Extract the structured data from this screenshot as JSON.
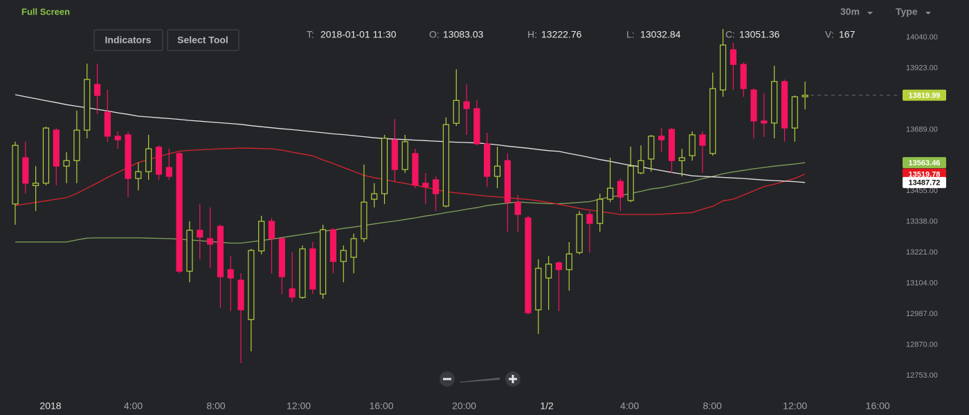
{
  "ui": {
    "full_screen": "Full Screen",
    "interval": "30m",
    "type_menu": "Type",
    "buttons": [
      "Indicators",
      "Select Tool"
    ],
    "ohlcv": [
      {
        "label": "T:",
        "value": "2018-01-01 11:30"
      },
      {
        "label": "O:",
        "value": "13083.03"
      },
      {
        "label": "H:",
        "value": "13222.76"
      },
      {
        "label": "L:",
        "value": "13032.84"
      },
      {
        "label": "C:",
        "value": "13051.36"
      },
      {
        "label": "V:",
        "value": "167"
      }
    ]
  },
  "chart_data": {
    "type": "candlestick",
    "categories": [
      null,
      null,
      null,
      "2018",
      null,
      null,
      null,
      null,
      null,
      null,
      null,
      "4:00",
      null,
      null,
      null,
      null,
      null,
      null,
      null,
      "8:00",
      null,
      null,
      null,
      null,
      null,
      null,
      null,
      "12:00",
      null,
      null,
      null,
      null,
      null,
      null,
      null,
      "16:00",
      null,
      null,
      null,
      null,
      null,
      null,
      null,
      "20:00",
      null,
      null,
      null,
      null,
      null,
      null,
      null,
      "1/2",
      null,
      null,
      null,
      null,
      null,
      null,
      null,
      "4:00",
      null,
      null,
      null,
      null,
      null,
      null,
      null,
      "8:00",
      null,
      null,
      null,
      null,
      null,
      null,
      null,
      "12:00",
      null,
      null,
      null,
      null,
      null,
      null,
      null,
      "16:00"
    ],
    "open": [
      13406,
      13582,
      13476,
      13485,
      13687,
      13550,
      13571,
      13687,
      13861,
      13756,
      13664,
      13669,
      13503,
      13529,
      13622,
      13545,
      13598,
      13150,
      13306,
      13274,
      13321,
      13156,
      13116,
      12966,
      13227,
      13340,
      13274,
      13083.03,
      13050,
      13235,
      13063,
      13308,
      13187,
      13203,
      13274,
      13424,
      13445,
      13650,
      13537,
      13598,
      13485,
      13498,
      13398,
      13713,
      13795,
      13769,
      13635,
      13511,
      13571,
      13413,
      13353,
      13003,
      13124,
      13182,
      13156,
      13221,
      13366,
      13332,
      13424,
      13492,
      13419,
      13524,
      13577,
      13664,
      13690,
      13571,
      13590,
      13669,
      13598,
      13840,
      13993,
      13937,
      13840,
      13722,
      13714,
      13872,
      13695,
      13814,
      null,
      null,
      null,
      null,
      null,
      null
    ],
    "high": [
      13643,
      13643,
      13550,
      13700,
      13695,
      13603,
      13761,
      13940,
      13940,
      13840,
      13682,
      13682,
      13563,
      13669,
      13629,
      13616,
      13603,
      13340,
      13406,
      13393,
      13327,
      13208,
      13142,
      13235,
      13361,
      13353,
      13274,
      13222.76,
      13248,
      13261,
      13327,
      13314,
      13248,
      13293,
      13556,
      13485,
      13669,
      13729,
      13669,
      13616,
      13524,
      13511,
      13735,
      13919,
      13861,
      13800,
      13677,
      13624,
      13598,
      13440,
      13361,
      13195,
      13208,
      13187,
      13261,
      13379,
      13379,
      13445,
      13582,
      13503,
      13624,
      13629,
      13669,
      13695,
      13695,
      13616,
      13682,
      13682,
      13906,
      14072,
      14019,
      13945,
      13845,
      13827,
      13932,
      13880,
      13819,
      13872,
      null,
      null,
      null,
      null,
      null,
      null
    ],
    "low": [
      13327,
      13445,
      13379,
      13477,
      13477,
      13485,
      13485,
      13656,
      13748,
      13643,
      13616,
      13432,
      13458,
      13498,
      13498,
      13498,
      13142,
      13108,
      13195,
      13161,
      13011,
      12998,
      12800,
      12845,
      13214,
      13142,
      13063,
      13032.84,
      13045,
      13063,
      13045,
      13142,
      13108,
      13142,
      13261,
      13393,
      13406,
      13492,
      13524,
      13466,
      13406,
      13379,
      13393,
      13703,
      13669,
      13629,
      13471,
      13466,
      13300,
      13300,
      12985,
      12911,
      13003,
      12998,
      13076,
      13214,
      13221,
      13300,
      13413,
      13379,
      13413,
      13519,
      13529,
      13603,
      13524,
      13511,
      13571,
      13524,
      13590,
      13814,
      13840,
      13814,
      13656,
      13661,
      13656,
      13643,
      13643,
      13766,
      null,
      null,
      null,
      null,
      null,
      null
    ],
    "close": [
      13629,
      13485,
      13485,
      13695,
      13550,
      13571,
      13687,
      13880,
      13819,
      13664,
      13650,
      13503,
      13529,
      13616,
      13519,
      13511,
      13150,
      13306,
      13280,
      13253,
      13129,
      13124,
      13003,
      13229,
      13340,
      13274,
      13129,
      13051.36,
      13235,
      13082,
      13308,
      13187,
      13229,
      13274,
      13413,
      13445,
      13656,
      13537,
      13643,
      13477,
      13471,
      13445,
      13708,
      13800,
      13769,
      13635,
      13511,
      13550,
      13413,
      13366,
      12992,
      13161,
      13177,
      13156,
      13216,
      13366,
      13332,
      13424,
      13466,
      13432,
      13550,
      13571,
      13664,
      13650,
      13571,
      13582,
      13669,
      13629,
      13845,
      14011,
      13937,
      13845,
      13722,
      13714,
      13872,
      13695,
      13814,
      13819.99,
      null,
      null,
      null,
      null,
      null,
      null
    ],
    "up_color": "#b4d23a",
    "down_color": "#f5145f",
    "lines": [
      {
        "color": "#7fa35a",
        "badge_color": "#8fbf4a",
        "values": [
          13261,
          13261,
          13261,
          13261,
          13261,
          13261,
          13269,
          13276,
          13277,
          13277,
          13277,
          13277,
          13277,
          13276,
          13275,
          13274,
          13272,
          13269,
          13266,
          13263,
          13260,
          13257,
          13257,
          13262,
          13267,
          13272,
          13278,
          13284,
          13290,
          13296,
          13302,
          13307,
          13313,
          13318,
          13324,
          13330,
          13336,
          13341,
          13347,
          13353,
          13360,
          13366,
          13373,
          13379,
          13386,
          13392,
          13400,
          13405,
          13409,
          13414,
          13411,
          13409,
          13407,
          13407,
          13409,
          13412,
          13415,
          13424,
          13433,
          13438,
          13446,
          13454,
          13463,
          13468,
          13476,
          13484,
          13492,
          13502,
          13511,
          13521,
          13528,
          13534,
          13540,
          13545,
          13550,
          13554,
          13558,
          13563.46,
          null,
          null,
          null,
          null,
          null,
          null
        ]
      },
      {
        "color": "#d8242c",
        "badge_color": "#e8161e",
        "values": [
          13400,
          13406,
          13412,
          13418,
          13424,
          13430,
          13446,
          13466,
          13486,
          13507,
          13526,
          13545,
          13564,
          13575,
          13586,
          13597,
          13607,
          13610,
          13612,
          13614,
          13616,
          13617,
          13619,
          13618,
          13617,
          13616,
          13611,
          13603,
          13596,
          13589,
          13574,
          13560,
          13545,
          13530,
          13515,
          13506,
          13499,
          13491,
          13484,
          13477,
          13469,
          13461,
          13453,
          13448,
          13444,
          13440,
          13436,
          13433,
          13430,
          13426,
          13423,
          13418,
          13412,
          13405,
          13397,
          13389,
          13383,
          13377,
          13372,
          13366,
          13366,
          13366,
          13366,
          13367,
          13369,
          13371,
          13373,
          13386,
          13397,
          13418,
          13424,
          13440,
          13456,
          13472,
          13481,
          13492,
          13503,
          13519.78,
          null,
          null,
          null,
          null,
          null,
          null
        ]
      },
      {
        "color": "#e6e6e6",
        "badge_color": "#ffffff",
        "values": [
          13822,
          13814,
          13807,
          13799,
          13792,
          13784,
          13778,
          13772,
          13766,
          13760,
          13753,
          13747,
          13740,
          13737,
          13734,
          13731,
          13728,
          13724,
          13721,
          13718,
          13715,
          13712,
          13709,
          13704,
          13700,
          13696,
          13692,
          13689,
          13685,
          13681,
          13677,
          13673,
          13670,
          13666,
          13662,
          13658,
          13655,
          13653,
          13651,
          13649,
          13647,
          13645,
          13643,
          13641,
          13640,
          13638,
          13635,
          13631,
          13626,
          13622,
          13618,
          13613,
          13609,
          13606,
          13598,
          13591,
          13583,
          13575,
          13568,
          13560,
          13553,
          13547,
          13540,
          13533,
          13526,
          13520,
          13513,
          13511,
          13509,
          13507,
          13505,
          13503,
          13500,
          13497,
          13495,
          13493,
          13491,
          13487.72,
          null,
          null,
          null,
          null,
          null,
          null
        ]
      }
    ],
    "ylim": [
      12708,
      14077
    ],
    "yticks": [
      {
        "value": 14040,
        "label": "14040.00"
      },
      {
        "value": 13923,
        "label": "13923.00"
      },
      {
        "value": 13689,
        "label": "13689.00"
      },
      {
        "value": 13455,
        "label": "13455.00"
      },
      {
        "value": 13338,
        "label": "13338.00"
      },
      {
        "value": 13221,
        "label": "13221.00"
      },
      {
        "value": 13104,
        "label": "13104.00"
      },
      {
        "value": 12987,
        "label": "12987.00"
      },
      {
        "value": 12870,
        "label": "12870.00"
      },
      {
        "value": 12753,
        "label": "12753.00"
      }
    ]
  }
}
